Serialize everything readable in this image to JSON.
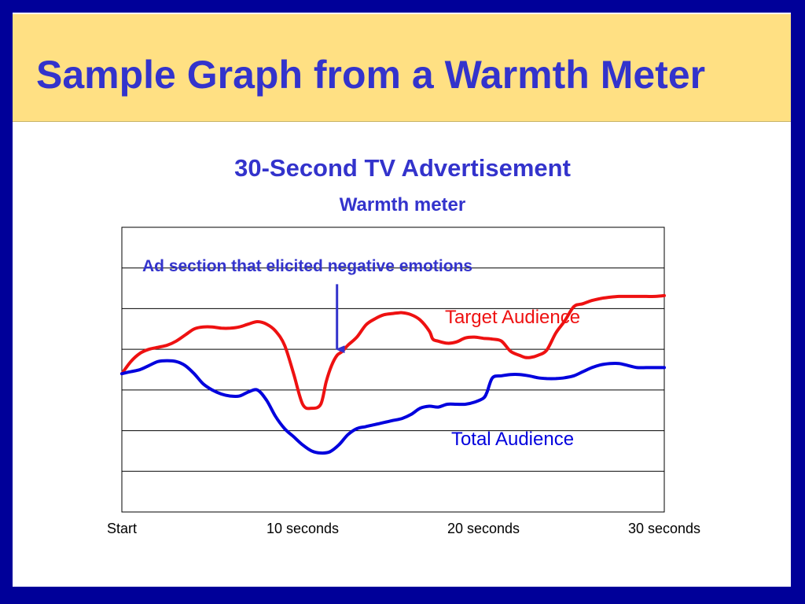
{
  "slide": {
    "title": "Sample Graph from a Warmth Meter"
  },
  "colors": {
    "frame": "#000099",
    "title_bar": "#ffe083",
    "title_text": "#3333cc",
    "target": "#ee1111",
    "total": "#0000dd"
  },
  "chart_data": {
    "type": "line",
    "title": "30-Second TV Advertisement",
    "subtitle": "Warmth meter",
    "xlabel": "",
    "ylabel": "",
    "x_ticks": [
      {
        "value": 0,
        "label": "Start"
      },
      {
        "value": 10,
        "label": "10 seconds"
      },
      {
        "value": 20,
        "label": "20 seconds"
      },
      {
        "value": 30,
        "label": "30 seconds"
      }
    ],
    "xlim": [
      0,
      30
    ],
    "ylim": [
      0,
      7
    ],
    "grid": true,
    "annotation": {
      "text": "Ad section that elicited negative emotions",
      "x": 11.9,
      "y_from": 5.6,
      "y_to": 4.0
    },
    "series": [
      {
        "name": "Target Audience",
        "label_position": "above-right",
        "x": [
          0,
          0.5,
          1,
          1.5,
          2,
          2.5,
          3,
          3.5,
          4,
          4.5,
          5,
          5.5,
          6,
          6.5,
          7,
          7.5,
          8,
          8.5,
          9,
          9.5,
          10,
          10.5,
          11,
          11.3,
          11.6,
          11.9,
          12.2,
          12.5,
          13,
          13.5,
          14,
          14.5,
          15,
          15.5,
          16,
          16.5,
          17,
          17.2,
          17.5,
          18,
          18.5,
          19,
          19.5,
          20,
          20.5,
          21,
          21.5,
          22,
          22.3,
          22.6,
          23,
          23.5,
          24,
          24.5,
          25,
          25.5,
          26,
          26.5,
          27,
          27.5,
          28,
          28.5,
          29,
          29.5,
          30
        ],
        "values": [
          3.4,
          3.7,
          3.9,
          4.0,
          4.05,
          4.1,
          4.2,
          4.35,
          4.5,
          4.55,
          4.55,
          4.52,
          4.52,
          4.55,
          4.62,
          4.68,
          4.62,
          4.45,
          4.1,
          3.4,
          2.65,
          2.55,
          2.65,
          3.2,
          3.6,
          3.85,
          3.95,
          4.1,
          4.3,
          4.6,
          4.75,
          4.85,
          4.88,
          4.9,
          4.85,
          4.72,
          4.45,
          4.25,
          4.2,
          4.15,
          4.18,
          4.28,
          4.3,
          4.27,
          4.25,
          4.2,
          3.95,
          3.85,
          3.8,
          3.8,
          3.85,
          3.98,
          4.4,
          4.7,
          5.05,
          5.12,
          5.2,
          5.25,
          5.28,
          5.3,
          5.3,
          5.3,
          5.3,
          5.3,
          5.32
        ]
      },
      {
        "name": "Total Audience",
        "label_position": "below",
        "x": [
          0,
          0.5,
          1,
          1.5,
          2,
          2.5,
          3,
          3.5,
          4,
          4.5,
          5,
          5.5,
          6,
          6.5,
          7,
          7.5,
          8,
          8.5,
          9,
          9.5,
          10,
          10.5,
          11,
          11.5,
          12,
          12.5,
          13,
          13.5,
          14,
          14.5,
          15,
          15.5,
          16,
          16.5,
          17,
          17.5,
          18,
          18.5,
          19,
          19.5,
          20,
          20.2,
          20.5,
          21,
          21.5,
          22,
          22.5,
          23,
          23.5,
          24,
          24.5,
          25,
          25.5,
          26,
          26.5,
          27,
          27.5,
          28,
          28.5,
          29,
          29.5,
          30
        ],
        "values": [
          3.4,
          3.45,
          3.5,
          3.6,
          3.7,
          3.72,
          3.7,
          3.6,
          3.4,
          3.15,
          3.0,
          2.9,
          2.85,
          2.85,
          2.95,
          3.0,
          2.75,
          2.35,
          2.05,
          1.85,
          1.65,
          1.5,
          1.45,
          1.48,
          1.65,
          1.9,
          2.05,
          2.1,
          2.15,
          2.2,
          2.25,
          2.3,
          2.4,
          2.55,
          2.6,
          2.58,
          2.65,
          2.65,
          2.65,
          2.7,
          2.8,
          2.95,
          3.3,
          3.35,
          3.38,
          3.38,
          3.35,
          3.3,
          3.28,
          3.28,
          3.3,
          3.35,
          3.45,
          3.55,
          3.62,
          3.65,
          3.65,
          3.6,
          3.55,
          3.55,
          3.55,
          3.55
        ]
      }
    ]
  }
}
